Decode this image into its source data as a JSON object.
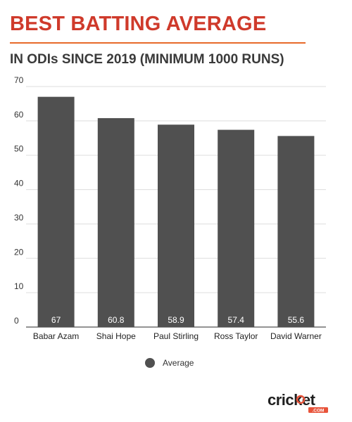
{
  "title": "BEST BATTING AVERAGE",
  "subtitle": "IN ODIs SINCE 2019 (MINIMUM 1000 RUNS)",
  "colors": {
    "title": "#cf3a2b",
    "rule": "#e86a2a",
    "bar": "#505050",
    "brand_accent": "#e8533a"
  },
  "brand": {
    "logo_text": "cricket.com"
  },
  "chart_data": {
    "type": "bar",
    "categories": [
      "Babar Azam",
      "Shai Hope",
      "Paul Stirling",
      "Ross Taylor",
      "David Warner"
    ],
    "series": [
      {
        "name": "Average",
        "values": [
          67,
          60.8,
          58.9,
          57.4,
          55.6
        ]
      }
    ],
    "data_labels": [
      "67",
      "60.8",
      "58.9",
      "57.4",
      "55.6"
    ],
    "yticks": [
      0,
      10,
      20,
      30,
      40,
      50,
      60,
      70
    ],
    "ylim": [
      0,
      70
    ],
    "grid": true,
    "legend": "bottom-center"
  }
}
